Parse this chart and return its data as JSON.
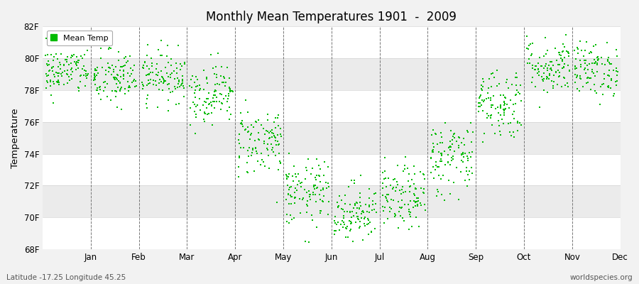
{
  "title": "Monthly Mean Temperatures 1901  -  2009",
  "ylabel": "Temperature",
  "subtitle_left": "Latitude -17.25 Longitude 45.25",
  "subtitle_right": "worldspecies.org",
  "ylim": [
    68,
    82
  ],
  "yticks": [
    68,
    70,
    72,
    74,
    76,
    78,
    80,
    82
  ],
  "ytick_labels": [
    "68F",
    "70F",
    "72F",
    "74F",
    "76F",
    "78F",
    "80F",
    "82F"
  ],
  "months": [
    "Jan",
    "Feb",
    "Mar",
    "Apr",
    "May",
    "Jun",
    "Jul",
    "Aug",
    "Sep",
    "Oct",
    "Nov",
    "Dec"
  ],
  "marker_color": "#00bb00",
  "background_color": "#f2f2f2",
  "legend_label": "Mean Temp",
  "seed": 42,
  "n_years": 109,
  "monthly_means": [
    79.2,
    78.7,
    78.9,
    77.8,
    74.8,
    71.5,
    70.3,
    71.2,
    73.8,
    77.2,
    79.5,
    79.3
  ],
  "monthly_stds": [
    0.75,
    0.9,
    0.8,
    0.95,
    1.1,
    1.05,
    0.95,
    1.0,
    1.2,
    1.15,
    0.9,
    0.85
  ],
  "month_n_points": [
    109,
    109,
    109,
    109,
    109,
    109,
    109,
    109,
    109,
    109,
    109,
    109
  ],
  "band_colors": [
    "#f8f8f8",
    "#ebebeb",
    "#f8f8f8",
    "#ebebeb",
    "#f8f8f8",
    "#ebebeb",
    "#f8f8f8"
  ]
}
